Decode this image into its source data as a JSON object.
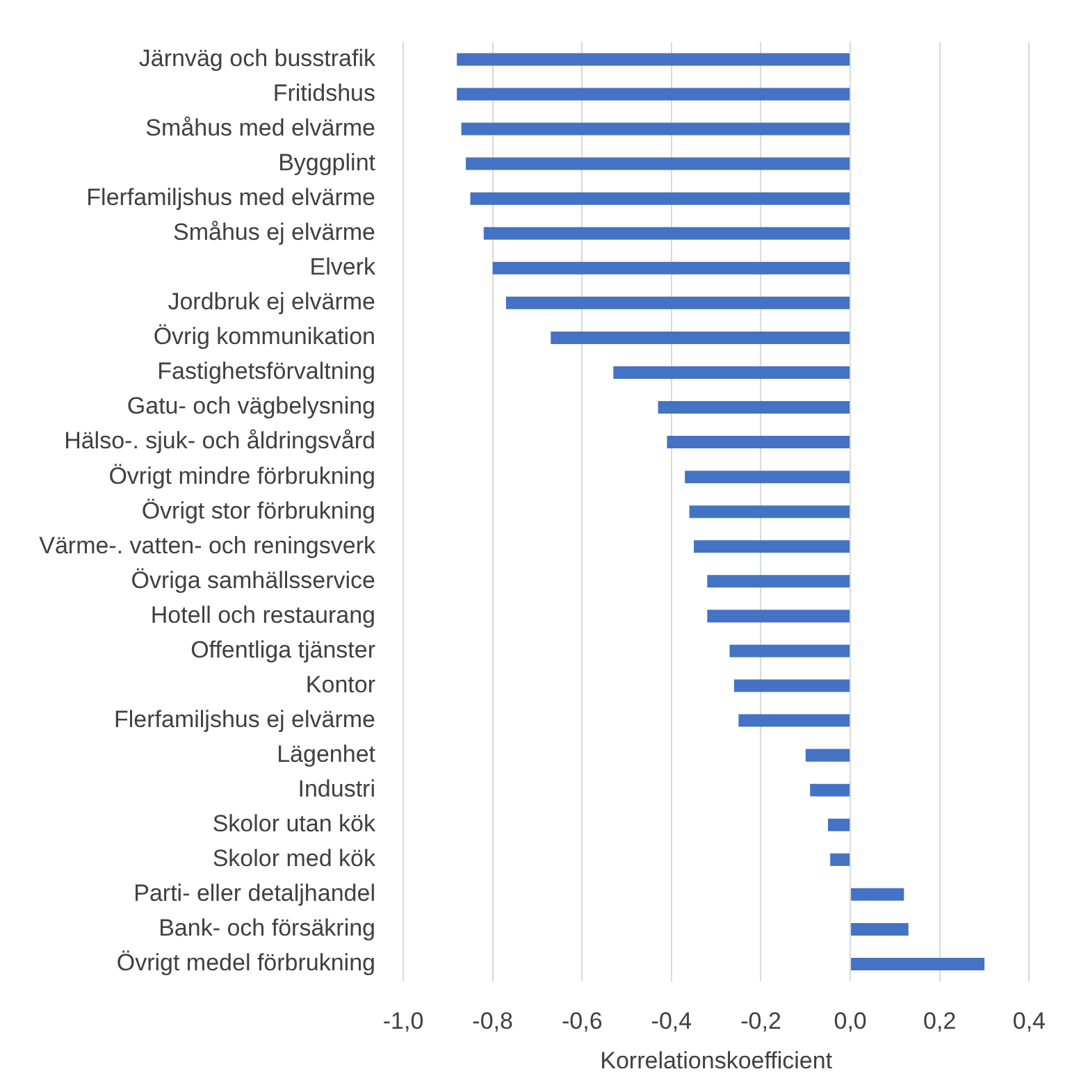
{
  "chart_data": {
    "type": "bar",
    "orientation": "horizontal",
    "xlabel": "Korrelationskoefficient",
    "categories": [
      "Järnväg och busstrafik",
      "Fritidshus",
      "Småhus med elvärme",
      "Byggplint",
      "Flerfamiljshus med elvärme",
      "Småhus ej elvärme",
      "Elverk",
      "Jordbruk ej elvärme",
      "Övrig kommunikation",
      "Fastighetsförvaltning",
      "Gatu- och vägbelysning",
      "Hälso-. sjuk- och åldringsvård",
      "Övrigt mindre förbrukning",
      "Övrigt stor förbrukning",
      "Värme-. vatten- och reningsverk",
      "Övriga samhällsservice",
      "Hotell och restaurang",
      "Offentliga tjänster",
      "Kontor",
      "Flerfamiljshus ej elvärme",
      "Lägenhet",
      "Industri",
      "Skolor utan kök",
      "Skolor med kök",
      "Parti- eller detaljhandel",
      "Bank- och försäkring",
      "Övrigt medel förbrukning"
    ],
    "values": [
      -0.88,
      -0.88,
      -0.87,
      -0.86,
      -0.85,
      -0.82,
      -0.8,
      -0.77,
      -0.67,
      -0.53,
      -0.43,
      -0.41,
      -0.37,
      -0.36,
      -0.35,
      -0.32,
      -0.32,
      -0.27,
      -0.26,
      -0.25,
      -0.1,
      -0.09,
      -0.05,
      -0.045,
      0.12,
      0.13,
      0.3
    ],
    "color": "#4472c4",
    "xlim": [
      -1,
      0.4
    ],
    "xticks": [
      {
        "value": -1,
        "label": "-1,0"
      },
      {
        "value": -0.8,
        "label": "-0,8"
      },
      {
        "value": -0.6,
        "label": "-0,6"
      },
      {
        "value": -0.4,
        "label": "-0,4"
      },
      {
        "value": -0.2,
        "label": "-0,2"
      },
      {
        "value": 0,
        "label": "0,0"
      },
      {
        "value": 0.2,
        "label": "0,2"
      },
      {
        "value": 0.4,
        "label": "0,4"
      }
    ],
    "grid": "x"
  }
}
